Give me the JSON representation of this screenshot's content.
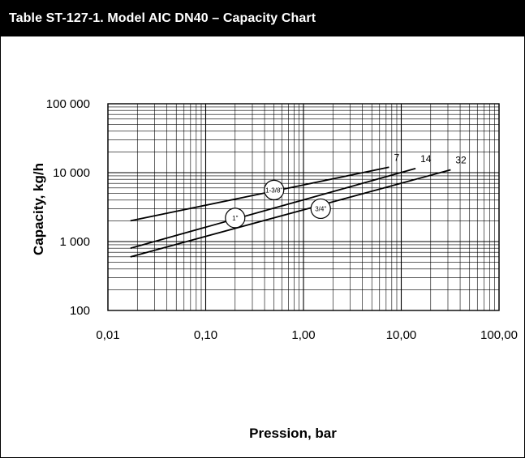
{
  "header": {
    "title": "Table ST-127-1. Model AIC DN40 – Capacity Chart"
  },
  "chart_data": {
    "type": "line",
    "title": "Table ST-127-1. Model AIC DN40 – Capacity Chart",
    "xlabel": "Pression, bar",
    "ylabel": "Capacity, kg/h",
    "xscale": "log",
    "yscale": "log",
    "xlim": [
      0.01,
      100
    ],
    "ylim": [
      100,
      100000
    ],
    "grid": true,
    "x_ticks": [
      0.01,
      0.1,
      1,
      10,
      100
    ],
    "x_tick_labels": [
      "0,01",
      "0,10",
      "1,00",
      "10,00",
      "100,00"
    ],
    "y_ticks": [
      100,
      1000,
      10000,
      100000
    ],
    "y_tick_labels": [
      "100",
      "1 000",
      "10 000",
      "100 000"
    ],
    "series": [
      {
        "name": "1-3/8\"",
        "end_label": "7",
        "x": [
          0.017,
          7.5
        ],
        "y": [
          2000,
          12000
        ],
        "marker": {
          "x": 0.5,
          "y": 5600
        }
      },
      {
        "name": "1\"",
        "end_label": "14",
        "x": [
          0.017,
          14
        ],
        "y": [
          800,
          11500
        ],
        "marker": {
          "x": 0.2,
          "y": 2200
        }
      },
      {
        "name": "3/4\"",
        "end_label": "32",
        "x": [
          0.017,
          32
        ],
        "y": [
          600,
          11000
        ],
        "marker": {
          "x": 1.5,
          "y": 3000
        }
      }
    ],
    "colors": {
      "line": "#000000",
      "grid": "#000000",
      "header_bg": "#000000",
      "header_text": "#ffffff"
    }
  }
}
